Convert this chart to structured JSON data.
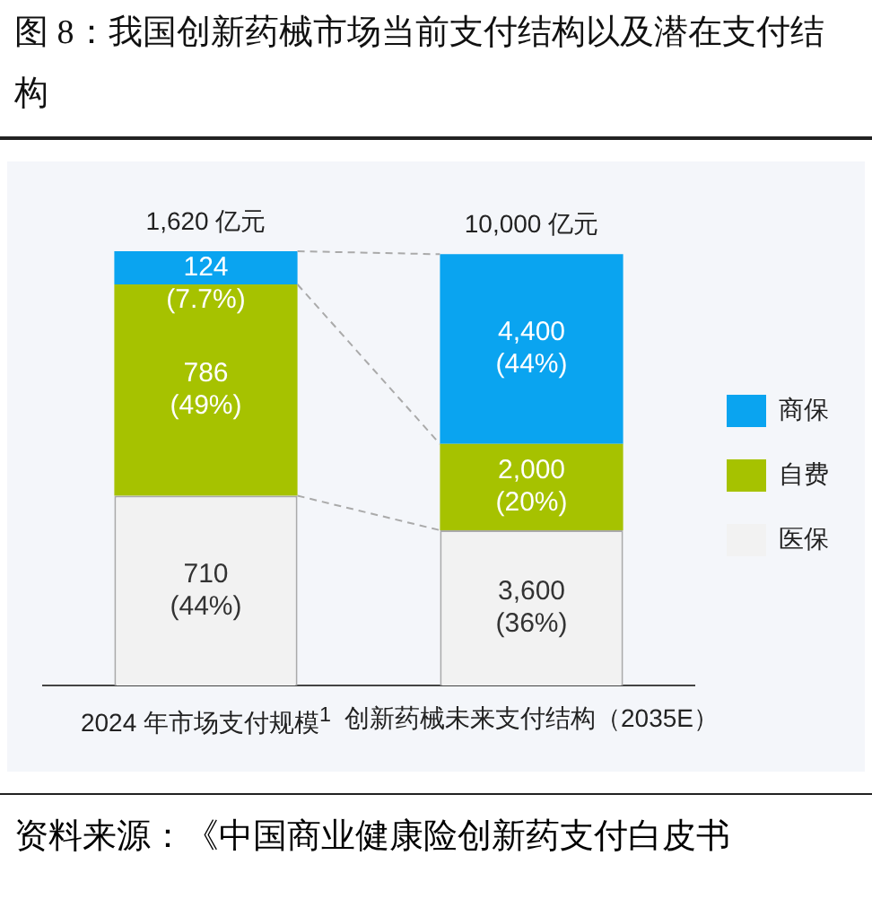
{
  "chart_data": {
    "type": "bar",
    "stacked": true,
    "title": "图 8：我国创新药械市场当前支付结构以及潜在支付结构",
    "categories": [
      "2024 年市场支付规模$^{1}$",
      "创新药械未来支付结构（2035E）"
    ],
    "series": [
      {
        "name": "医保",
        "color": "#f2f2f2",
        "values": [
          44,
          36
        ],
        "value_labels": [
          "710\n(44%)",
          "3,600\n(36%)"
        ]
      },
      {
        "name": "自费",
        "color": "#a6c200",
        "values": [
          49,
          20
        ],
        "value_labels": [
          "786\n(49%)",
          "2,000\n(20%)"
        ]
      },
      {
        "name": "商保",
        "color": "#0aa4f0",
        "values": [
          7.7,
          44
        ],
        "value_labels": [
          "124\n(7.7%)",
          "4,400\n(44%)"
        ]
      }
    ],
    "ylim": [
      0,
      100.7
    ],
    "tick_labels": "x",
    "grid": false,
    "legend": "right",
    "annotations": [
      "1,620 亿元",
      "10,000 亿元",
      "资料来源：《中国商业健康险创新药支付白皮书"
    ]
  }
}
